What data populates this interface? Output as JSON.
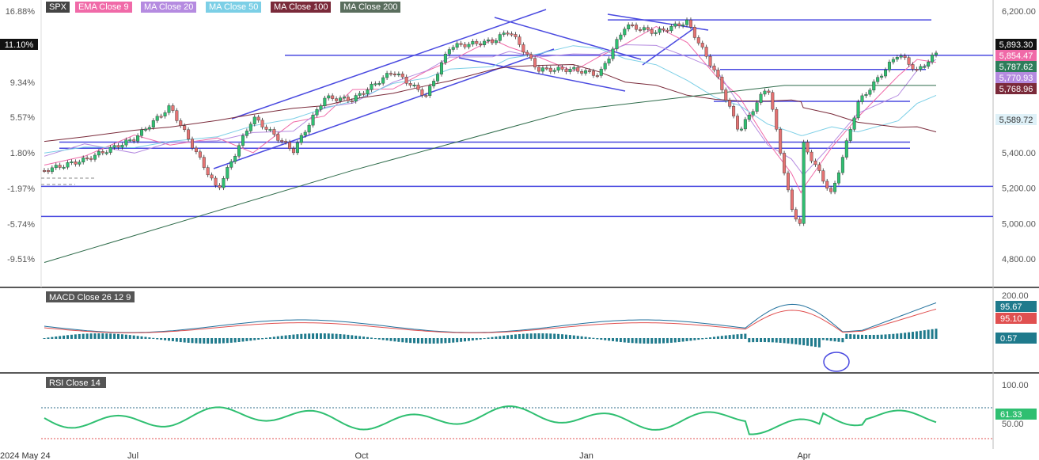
{
  "symbol": "SPX",
  "legend": [
    {
      "label": "EMA Close 9",
      "color": "#f06aa8"
    },
    {
      "label": "MA Close 20",
      "color": "#b58be0"
    },
    {
      "label": "MA Close 50",
      "color": "#7ccfe6"
    },
    {
      "label": "MA Close 100",
      "color": "#7a2a3a"
    },
    {
      "label": "MA Close 200",
      "color": "#2e6b4a"
    }
  ],
  "price_axis": {
    "right_ticks": [
      "6,200.00",
      "6,000.00",
      "5,800.00",
      "5,600.00",
      "5,400.00",
      "5,200.00",
      "5,000.00",
      "4,800.00"
    ],
    "left_ticks": [
      "16.88%",
      "9.34%",
      "5.57%",
      "1.80%",
      "-1.97%",
      "-5.74%",
      "-9.51%"
    ],
    "left_highlight": "11.10%",
    "badges": [
      {
        "label": "5,893.30",
        "bg": "#111111"
      },
      {
        "label": "5,854.47",
        "bg": "#f06aa8"
      },
      {
        "label": "5,787.62",
        "bg": "#2e7d5b"
      },
      {
        "label": "5,770.93",
        "bg": "#b58be0"
      },
      {
        "label": "5,768.96",
        "bg": "#7a2a3a"
      },
      {
        "label": "5,589.72",
        "bg": "#dff1f8"
      }
    ]
  },
  "macd": {
    "title": "MACD Close 26 12 9",
    "ticks": [
      "200.00"
    ],
    "badges": [
      {
        "label": "95.67",
        "bg": "#1f7a8c"
      },
      {
        "label": "95.10",
        "bg": "#e05050"
      },
      {
        "label": "0.57",
        "bg": "#1f7a8c"
      }
    ]
  },
  "rsi": {
    "title": "RSI Close 14",
    "ticks": [
      "100.00",
      "50.00"
    ],
    "badge": {
      "label": "61.33",
      "bg": "#2fbf71"
    }
  },
  "x_axis": [
    "2024 May 24",
    "Jul",
    "Oct",
    "Jan",
    "Apr"
  ],
  "colors": {
    "up": "#2fbf71",
    "down": "#e57373",
    "ema9": "#f06aa8",
    "ma20": "#b58be0",
    "ma50": "#7ccfe6",
    "ma100": "#7a2a3a",
    "ma200": "#2e6b4a",
    "trendline": "#4a4ae0",
    "macd_line": "#1f6f9c",
    "signal_line": "#e05050",
    "histogram": "#1f7a8c",
    "rsi_line": "#2fbf71"
  },
  "chart_data": {
    "type": "line",
    "title": "SPX",
    "y_range": [
      4750,
      6230
    ],
    "series": [
      {
        "name": "SPX",
        "x": [
          "2024-05-24",
          "2024-06-10",
          "2024-07-01",
          "2024-07-16",
          "2024-08-05",
          "2024-08-20",
          "2024-09-06",
          "2024-09-19",
          "2024-10-01",
          "2024-10-18",
          "2024-11-01",
          "2024-11-11",
          "2024-11-29",
          "2024-12-06",
          "2024-12-18",
          "2025-01-02",
          "2025-01-13",
          "2025-01-24",
          "2025-02-06",
          "2025-02-19",
          "2025-03-03",
          "2025-03-13",
          "2025-03-25",
          "2025-04-04",
          "2025-04-08",
          "2025-04-09",
          "2025-04-21",
          "2025-05-02",
          "2025-05-19",
          "2025-05-27",
          "2025-06-04"
        ],
        "values": [
          5300,
          5360,
          5480,
          5660,
          5190,
          5600,
          5410,
          5710,
          5700,
          5860,
          5720,
          6000,
          6030,
          6090,
          5870,
          5870,
          5840,
          6120,
          6080,
          6140,
          5850,
          5520,
          5780,
          5080,
          4990,
          5450,
          5160,
          5680,
          5960,
          5860,
          5960
        ]
      },
      {
        "name": "MA Close 200",
        "x": [
          "2024-05-24",
          "2024-10-01",
          "2025-01-02",
          "2025-04-01",
          "2025-06-04"
        ],
        "values": [
          4780,
          5300,
          5640,
          5780,
          5780
        ]
      }
    ],
    "levels": [
      6150,
      5950,
      5870,
      5690,
      5460,
      5425,
      5210,
      5040
    ],
    "macd": {
      "macd": 95.67,
      "signal": 95.1,
      "histogram": 0.57,
      "ticks": [
        200
      ]
    },
    "rsi": {
      "value": 61.33,
      "ticks": [
        100,
        50
      ]
    }
  }
}
